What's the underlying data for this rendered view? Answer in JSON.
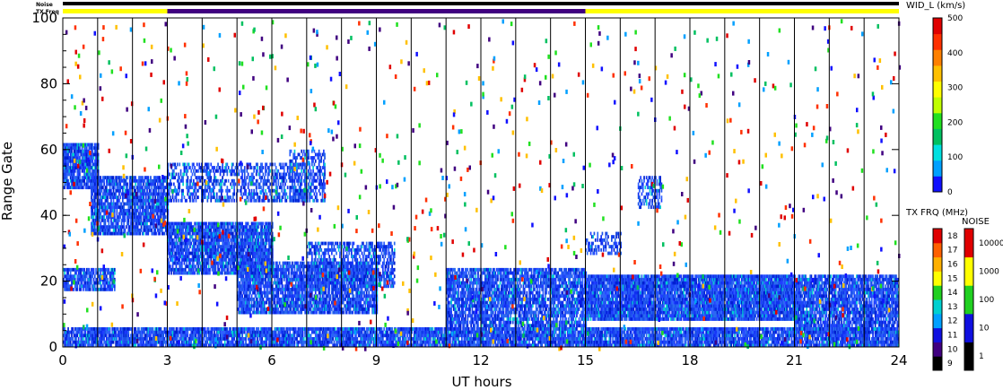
{
  "strip_labels": {
    "noise": "Noise",
    "tx_freq": "TX Freq"
  },
  "colors": {
    "yellow": "#ffff00",
    "purple": "#400080",
    "black": "#000000",
    "echo_blue": "#1e4be8"
  },
  "chart_data": {
    "type": "heatmap",
    "xlabel": "UT hours",
    "ylabel": "Range Gate",
    "xlim": [
      0,
      24
    ],
    "ylim": [
      0,
      100
    ],
    "x_ticks": [
      "0",
      "3",
      "6",
      "9",
      "12",
      "15",
      "18",
      "21",
      "24"
    ],
    "y_ticks": [
      "0",
      "20",
      "40",
      "60",
      "80",
      "100"
    ],
    "scan_boundaries_hours": [
      1.0,
      2.0,
      3.0,
      4.0,
      5.0,
      6.0,
      7.0,
      8.0,
      9.0,
      10.0,
      11.0,
      12.0,
      13.0,
      14.0,
      15.0,
      16.0,
      17.0,
      18.0,
      19.0,
      20.0,
      21.0,
      22.0,
      23.0
    ],
    "echo_regions": [
      {
        "x": [
          0.0,
          1.0
        ],
        "y": [
          48,
          62
        ],
        "intensity": 0.9
      },
      {
        "x": [
          0.8,
          3.0
        ],
        "y": [
          34,
          52
        ],
        "intensity": 0.85
      },
      {
        "x": [
          0.0,
          1.5
        ],
        "y": [
          17,
          24
        ],
        "intensity": 0.8
      },
      {
        "x": [
          3.0,
          6.0
        ],
        "y": [
          22,
          38
        ],
        "intensity": 0.9
      },
      {
        "x": [
          3.0,
          7.0
        ],
        "y": [
          44,
          56
        ],
        "intensity": 0.5
      },
      {
        "x": [
          5.0,
          9.0
        ],
        "y": [
          10,
          26
        ],
        "intensity": 0.85
      },
      {
        "x": [
          7.0,
          9.5
        ],
        "y": [
          18,
          32
        ],
        "intensity": 0.6
      },
      {
        "x": [
          6.5,
          7.5
        ],
        "y": [
          44,
          60
        ],
        "intensity": 0.5
      },
      {
        "x": [
          11.0,
          15.0
        ],
        "y": [
          6,
          24
        ],
        "intensity": 0.8
      },
      {
        "x": [
          15.0,
          21.0
        ],
        "y": [
          8,
          22
        ],
        "intensity": 0.95
      },
      {
        "x": [
          21.0,
          24.0
        ],
        "y": [
          4,
          22
        ],
        "intensity": 0.85
      },
      {
        "x": [
          0.0,
          24.0
        ],
        "y": [
          0,
          6
        ],
        "intensity": 0.9
      },
      {
        "x": [
          16.5,
          17.2
        ],
        "y": [
          42,
          52
        ],
        "intensity": 0.6
      },
      {
        "x": [
          15.0,
          16.0
        ],
        "y": [
          28,
          35
        ],
        "intensity": 0.45
      }
    ],
    "noise_strip": [
      {
        "x": [
          0,
          24
        ],
        "color": "#000000"
      }
    ],
    "txfreq_strip": [
      {
        "x": [
          0,
          3
        ],
        "color": "#ffff00"
      },
      {
        "x": [
          3,
          15
        ],
        "color": "#400080"
      },
      {
        "x": [
          15,
          24
        ],
        "color": "#ffff00"
      }
    ],
    "colorbars": [
      {
        "title": "WID_L (km/s)",
        "min": 0,
        "max": 500,
        "ticks": [
          "0",
          "100",
          "200",
          "300",
          "400",
          "500"
        ],
        "colors": [
          "#1010ff",
          "#00a0ff",
          "#00e0e0",
          "#00c060",
          "#20e020",
          "#c0ff00",
          "#ffff00",
          "#ffc000",
          "#ff8000",
          "#ff3000",
          "#e00000"
        ]
      },
      {
        "title": "TX FRQ (MHz)",
        "ticks": [
          "9",
          "10",
          "11",
          "12",
          "13",
          "14",
          "15",
          "16",
          "17",
          "18"
        ],
        "colors": [
          "#000000",
          "#400080",
          "#1010e0",
          "#00a0ff",
          "#00d0d0",
          "#20d020",
          "#ffff00",
          "#ffb000",
          "#ff6000",
          "#e00000"
        ]
      },
      {
        "title": "NOISE",
        "ticks": [
          "1",
          "10",
          "100",
          "1000",
          "10000"
        ],
        "colors": [
          "#000000",
          "#1010e0",
          "#20d020",
          "#ffff00",
          "#e00000"
        ]
      }
    ]
  }
}
